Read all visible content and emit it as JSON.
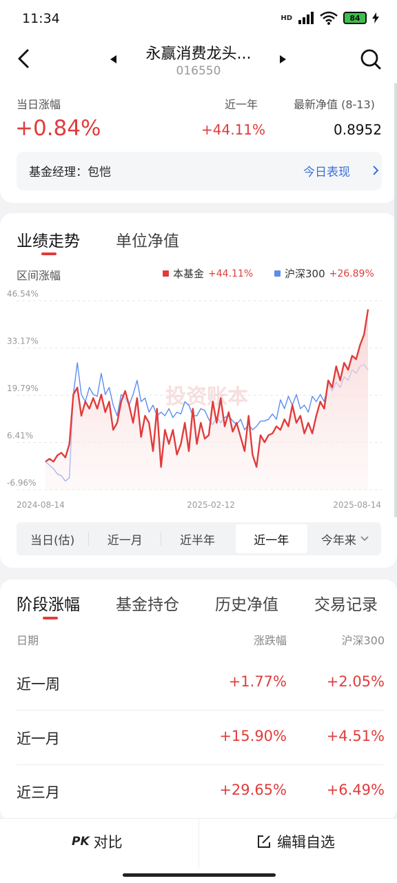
{
  "status": {
    "time": "11:34",
    "battery": "84",
    "hd": "HD"
  },
  "header": {
    "fund_name": "永赢消费龙头...",
    "fund_code": "016550"
  },
  "summary": {
    "daily_change_label": "当日涨幅",
    "daily_change": "+0.84%",
    "year_label": "近一年",
    "year_change": "+44.11%",
    "nav_label": "最新净值 (8-13)",
    "nav_value": "0.8952",
    "manager": "基金经理：包恺",
    "today_link": "今日表现"
  },
  "chart_section": {
    "tab_performance": "业绩走势",
    "tab_nav": "单位净值",
    "range_label": "区间涨幅",
    "legend_fund_label": "本基金",
    "legend_fund_value": "+44.11%",
    "legend_index_label": "沪深300",
    "legend_index_value": "+26.89%",
    "watermark": "投资账本",
    "ranges": [
      "当日(估)",
      "近一月",
      "近半年",
      "近一年",
      "今年来"
    ],
    "active_range": "近一年"
  },
  "chart_data": {
    "type": "line",
    "x_ticks": [
      "2024-08-14",
      "2025-02-12",
      "2025-08-14"
    ],
    "y_ticks": [
      "46.54%",
      "33.17%",
      "19.79%",
      "6.41%",
      "-6.96%"
    ],
    "ylim": [
      -6.96,
      46.54
    ],
    "grid": true,
    "series": [
      {
        "name": "本基金",
        "color": "#e03c3c",
        "values": [
          1.0,
          1.8,
          1.0,
          2.8,
          3.5,
          2.2,
          6.0,
          20.0,
          22.0,
          14.0,
          18.0,
          16.0,
          19.0,
          16.0,
          20.0,
          15.0,
          18.0,
          10.0,
          12.0,
          18.0,
          21.0,
          17.0,
          12.0,
          19.0,
          8.0,
          14.0,
          12.0,
          4.0,
          16.0,
          -0.5,
          10.0,
          6.0,
          10.0,
          3.0,
          6.0,
          12.0,
          4.0,
          16.0,
          6.0,
          12.0,
          7.5,
          8.5,
          18.0,
          12.0,
          19.0,
          11.0,
          15.0,
          9.5,
          12.0,
          8.0,
          4.0,
          14.0,
          3.0,
          -0.5,
          8.5,
          6.5,
          8.5,
          9.0,
          11.0,
          10.0,
          13.0,
          11.0,
          17.0,
          12.0,
          14.0,
          9.0,
          12.0,
          9.0,
          14.0,
          18.0,
          16.0,
          24.0,
          22.0,
          28.0,
          24.0,
          29.0,
          27.0,
          31.0,
          30.0,
          34.0,
          37.0,
          44.11
        ]
      },
      {
        "name": "沪深300",
        "color": "#5b8def",
        "values": [
          1.0,
          0.0,
          -1.0,
          -2.5,
          -3.0,
          -4.5,
          -3.5,
          20.0,
          29.0,
          20.0,
          18.0,
          22.0,
          20.0,
          19.5,
          26.0,
          20.0,
          22.0,
          17.0,
          14.0,
          20.0,
          19.0,
          17.0,
          20.0,
          24.0,
          18.0,
          19.0,
          15.0,
          17.0,
          14.0,
          15.0,
          14.0,
          16.0,
          13.5,
          15.0,
          14.5,
          18.0,
          17.0,
          14.0,
          14.0,
          16.0,
          15.5,
          13.0,
          11.5,
          13.5,
          12.0,
          13.5,
          14.0,
          12.5,
          11.5,
          13.0,
          10.0,
          11.5,
          10.0,
          11.0,
          12.5,
          12.5,
          13.0,
          14.5,
          13.0,
          18.5,
          16.0,
          19.5,
          17.0,
          20.0,
          16.0,
          17.0,
          15.0,
          19.5,
          18.0,
          20.0,
          18.0,
          23.0,
          21.0,
          23.5,
          22.0,
          25.0,
          24.0,
          27.0,
          26.0,
          28.0,
          28.5,
          26.89
        ]
      }
    ]
  },
  "periods": {
    "tabs": [
      "阶段涨幅",
      "基金持仓",
      "历史净值",
      "交易记录"
    ],
    "col_date": "日期",
    "col_change": "涨跌幅",
    "col_index": "沪深300",
    "rows": [
      {
        "label": "近一周",
        "change": "+1.77%",
        "index": "+2.05%"
      },
      {
        "label": "近一月",
        "change": "+15.90%",
        "index": "+4.51%"
      },
      {
        "label": "近三月",
        "change": "+29.65%",
        "index": "+6.49%"
      }
    ]
  },
  "bottom": {
    "compare": "对比",
    "pk": "PK",
    "edit": "编辑自选"
  },
  "colors": {
    "accent_red": "#e03c3c",
    "index_blue": "#5b8def"
  }
}
